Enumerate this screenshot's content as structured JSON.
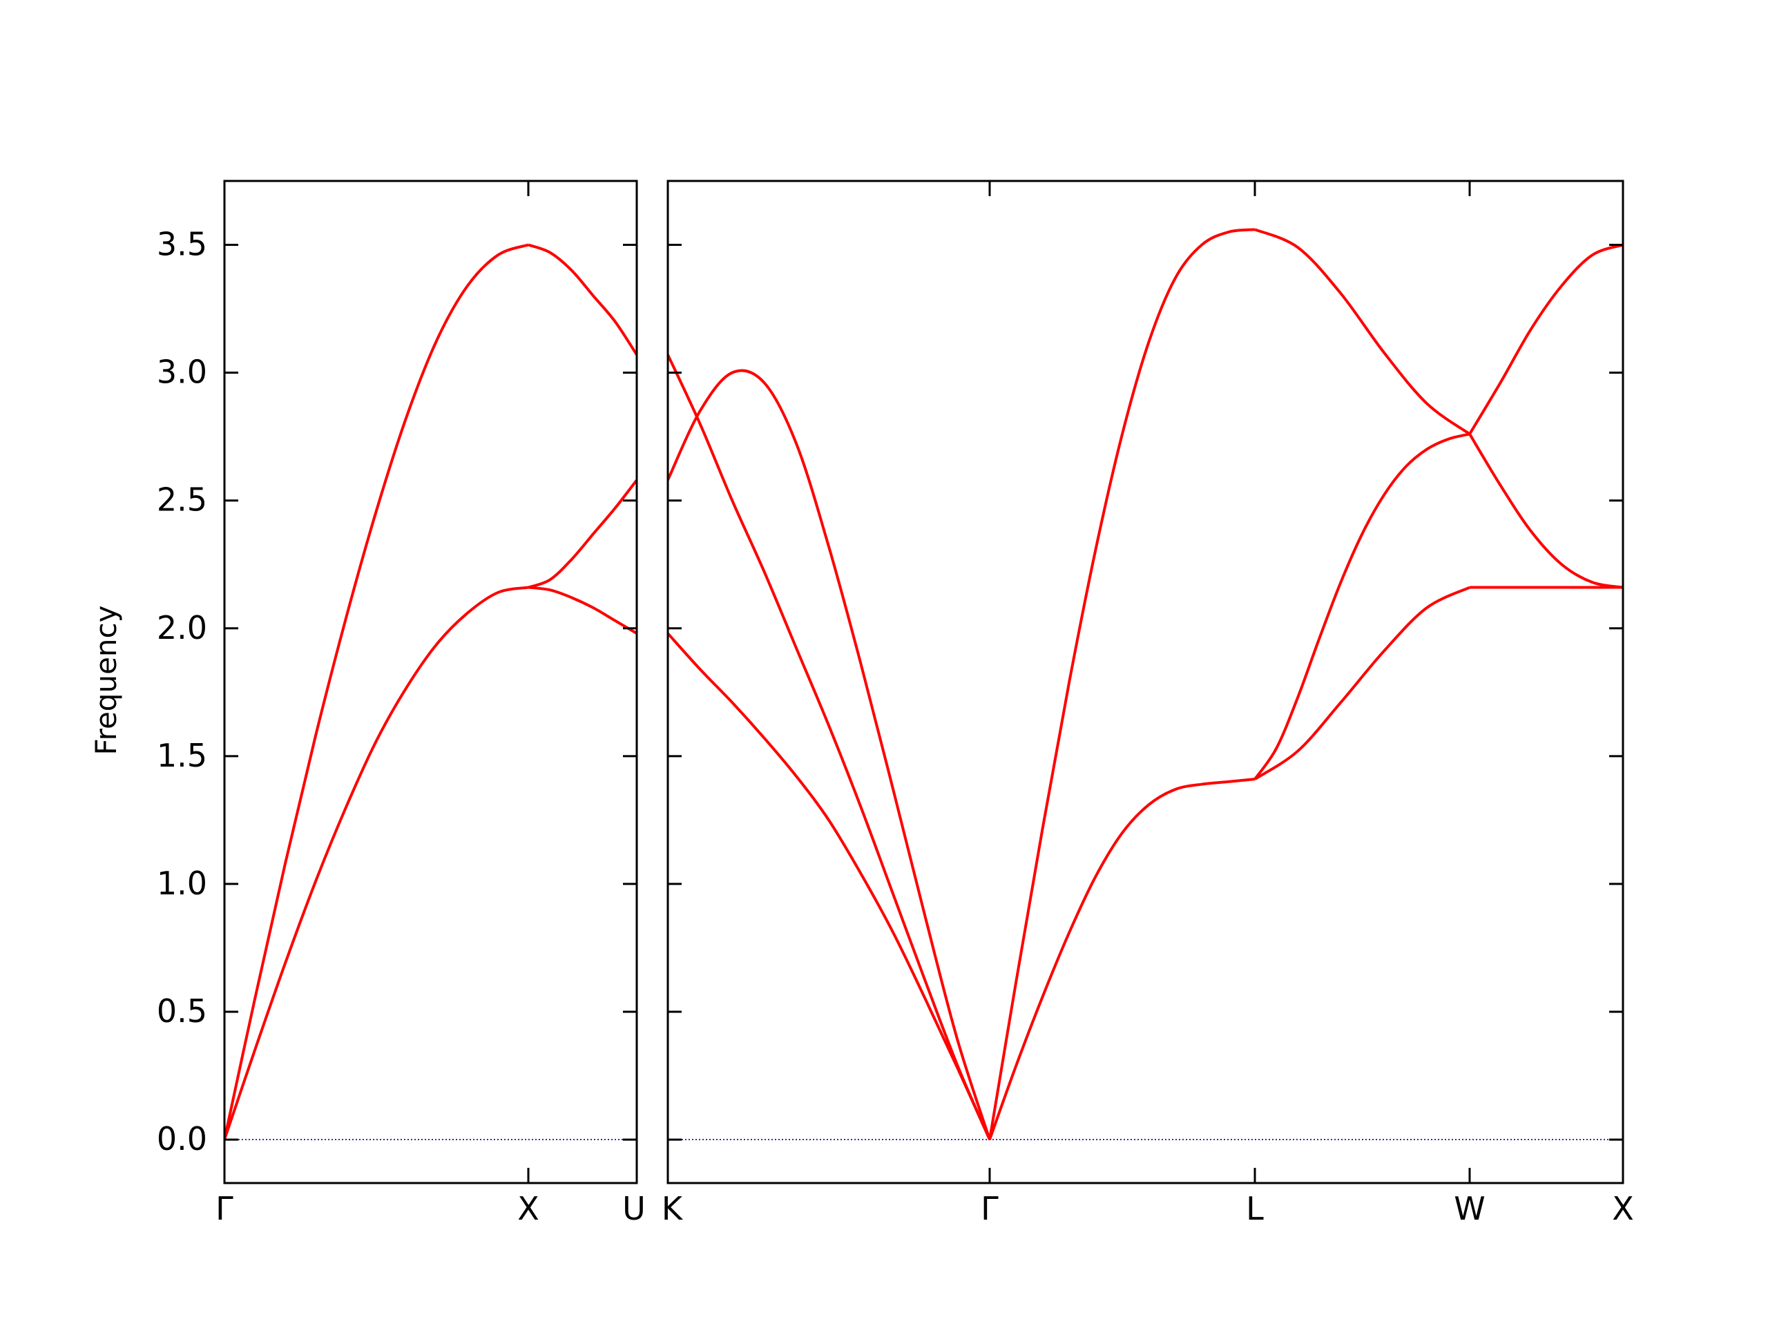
{
  "chart_data": {
    "type": "line",
    "ylabel": "Frequency",
    "ylim": [
      -0.17,
      3.75
    ],
    "y_ticks": [
      0.0,
      0.5,
      1.0,
      1.5,
      2.0,
      2.5,
      3.0,
      3.5
    ],
    "y_tick_labels": [
      "0.0",
      "0.5",
      "1.0",
      "1.5",
      "2.0",
      "2.5",
      "3.0",
      "3.5"
    ],
    "line_color": "#ff0000",
    "zero_line_color": "#00008b",
    "panels": [
      {
        "segments": [
          {
            "from_label": "Γ",
            "to_label": "X",
            "bands": [
              [
                [
                  0,
                  0
                ],
                [
                  0.1,
                  0.55
                ],
                [
                  0.2,
                  1.08
                ],
                [
                  0.3,
                  1.58
                ],
                [
                  0.4,
                  2.04
                ],
                [
                  0.5,
                  2.46
                ],
                [
                  0.6,
                  2.83
                ],
                [
                  0.7,
                  3.13
                ],
                [
                  0.8,
                  3.34
                ],
                [
                  0.9,
                  3.46
                ],
                [
                  1,
                  3.5
                ]
              ],
              [
                [
                  0,
                  0
                ],
                [
                  0.1,
                  0.35
                ],
                [
                  0.2,
                  0.69
                ],
                [
                  0.3,
                  1.01
                ],
                [
                  0.4,
                  1.3
                ],
                [
                  0.5,
                  1.56
                ],
                [
                  0.6,
                  1.77
                ],
                [
                  0.7,
                  1.94
                ],
                [
                  0.8,
                  2.06
                ],
                [
                  0.9,
                  2.14
                ],
                [
                  1,
                  2.16
                ]
              ]
            ]
          },
          {
            "from_label": "X",
            "to_label": "U",
            "bands": [
              [
                [
                  0,
                  3.5
                ],
                [
                  0.2,
                  3.47
                ],
                [
                  0.4,
                  3.4
                ],
                [
                  0.6,
                  3.3
                ],
                [
                  0.8,
                  3.2
                ],
                [
                  1,
                  3.07
                ]
              ],
              [
                [
                  0,
                  2.16
                ],
                [
                  0.2,
                  2.19
                ],
                [
                  0.4,
                  2.27
                ],
                [
                  0.6,
                  2.37
                ],
                [
                  0.8,
                  2.47
                ],
                [
                  1,
                  2.58
                ]
              ],
              [
                [
                  0,
                  2.16
                ],
                [
                  0.2,
                  2.15
                ],
                [
                  0.4,
                  2.12
                ],
                [
                  0.6,
                  2.08
                ],
                [
                  0.8,
                  2.03
                ],
                [
                  1,
                  1.98
                ]
              ]
            ]
          }
        ]
      },
      {
        "segments": [
          {
            "from_label": "K",
            "to_label": "Γ",
            "bands": [
              [
                [
                  0,
                  2.58
                ],
                [
                  0.1,
                  2.85
                ],
                [
                  0.2,
                  3.0
                ],
                [
                  0.3,
                  2.96
                ],
                [
                  0.4,
                  2.72
                ],
                [
                  0.5,
                  2.32
                ],
                [
                  0.6,
                  1.86
                ],
                [
                  0.7,
                  1.37
                ],
                [
                  0.8,
                  0.87
                ],
                [
                  0.9,
                  0.39
                ],
                [
                  1,
                  0
                ]
              ],
              [
                [
                  0,
                  3.07
                ],
                [
                  0.1,
                  2.8
                ],
                [
                  0.2,
                  2.5
                ],
                [
                  0.3,
                  2.22
                ],
                [
                  0.4,
                  1.92
                ],
                [
                  0.5,
                  1.62
                ],
                [
                  0.6,
                  1.3
                ],
                [
                  0.7,
                  0.96
                ],
                [
                  0.8,
                  0.62
                ],
                [
                  0.9,
                  0.29
                ],
                [
                  1,
                  0
                ]
              ],
              [
                [
                  0,
                  1.98
                ],
                [
                  0.1,
                  1.84
                ],
                [
                  0.2,
                  1.71
                ],
                [
                  0.3,
                  1.57
                ],
                [
                  0.4,
                  1.42
                ],
                [
                  0.5,
                  1.25
                ],
                [
                  0.6,
                  1.04
                ],
                [
                  0.7,
                  0.81
                ],
                [
                  0.8,
                  0.55
                ],
                [
                  0.9,
                  0.28
                ],
                [
                  1,
                  0
                ]
              ]
            ]
          },
          {
            "from_label": "Γ",
            "to_label": "L",
            "bands": [
              [
                [
                  0,
                  0
                ],
                [
                  0.1,
                  0.62
                ],
                [
                  0.2,
                  1.22
                ],
                [
                  0.3,
                  1.79
                ],
                [
                  0.4,
                  2.31
                ],
                [
                  0.5,
                  2.76
                ],
                [
                  0.6,
                  3.12
                ],
                [
                  0.7,
                  3.37
                ],
                [
                  0.8,
                  3.5
                ],
                [
                  0.9,
                  3.55
                ],
                [
                  1,
                  3.56
                ]
              ],
              [
                [
                  0,
                  0
                ],
                [
                  0.1,
                  0.29
                ],
                [
                  0.2,
                  0.56
                ],
                [
                  0.3,
                  0.81
                ],
                [
                  0.4,
                  1.03
                ],
                [
                  0.5,
                  1.2
                ],
                [
                  0.6,
                  1.31
                ],
                [
                  0.7,
                  1.37
                ],
                [
                  0.8,
                  1.39
                ],
                [
                  0.9,
                  1.4
                ],
                [
                  1,
                  1.41
                ]
              ]
            ]
          },
          {
            "from_label": "L",
            "to_label": "W",
            "bands": [
              [
                [
                  0,
                  3.56
                ],
                [
                  0.2,
                  3.49
                ],
                [
                  0.4,
                  3.31
                ],
                [
                  0.6,
                  3.08
                ],
                [
                  0.8,
                  2.88
                ],
                [
                  1,
                  2.76
                ]
              ],
              [
                [
                  0,
                  1.41
                ],
                [
                  0.1,
                  1.53
                ],
                [
                  0.2,
                  1.73
                ],
                [
                  0.3,
                  1.96
                ],
                [
                  0.4,
                  2.18
                ],
                [
                  0.5,
                  2.37
                ],
                [
                  0.6,
                  2.52
                ],
                [
                  0.7,
                  2.63
                ],
                [
                  0.8,
                  2.7
                ],
                [
                  0.9,
                  2.74
                ],
                [
                  1,
                  2.76
                ]
              ],
              [
                [
                  0,
                  1.41
                ],
                [
                  0.2,
                  1.52
                ],
                [
                  0.4,
                  1.71
                ],
                [
                  0.6,
                  1.91
                ],
                [
                  0.8,
                  2.08
                ],
                [
                  1,
                  2.16
                ]
              ]
            ]
          },
          {
            "from_label": "W",
            "to_label": "X",
            "bands": [
              [
                [
                  0,
                  2.76
                ],
                [
                  0.2,
                  2.96
                ],
                [
                  0.4,
                  3.17
                ],
                [
                  0.6,
                  3.34
                ],
                [
                  0.8,
                  3.46
                ],
                [
                  1,
                  3.5
                ]
              ],
              [
                [
                  0,
                  2.76
                ],
                [
                  0.2,
                  2.56
                ],
                [
                  0.4,
                  2.38
                ],
                [
                  0.6,
                  2.25
                ],
                [
                  0.8,
                  2.18
                ],
                [
                  1,
                  2.16
                ]
              ],
              [
                [
                  0,
                  2.16
                ],
                [
                  0.5,
                  2.16
                ],
                [
                  1,
                  2.16
                ]
              ]
            ]
          }
        ]
      }
    ],
    "x_tick_labels": [
      {
        "panel": 0,
        "segment_boundary": 0,
        "label": "Γ"
      },
      {
        "panel": 0,
        "segment_boundary": 1,
        "label": "X"
      },
      {
        "panel": 0,
        "segment_boundary": 2,
        "label": "U"
      },
      {
        "panel": 1,
        "segment_boundary": 0,
        "label": "K"
      },
      {
        "panel": 1,
        "segment_boundary": 1,
        "label": "Γ"
      },
      {
        "panel": 1,
        "segment_boundary": 2,
        "label": "L"
      },
      {
        "panel": 1,
        "segment_boundary": 3,
        "label": "W"
      },
      {
        "panel": 1,
        "segment_boundary": 4,
        "label": "X"
      }
    ]
  }
}
